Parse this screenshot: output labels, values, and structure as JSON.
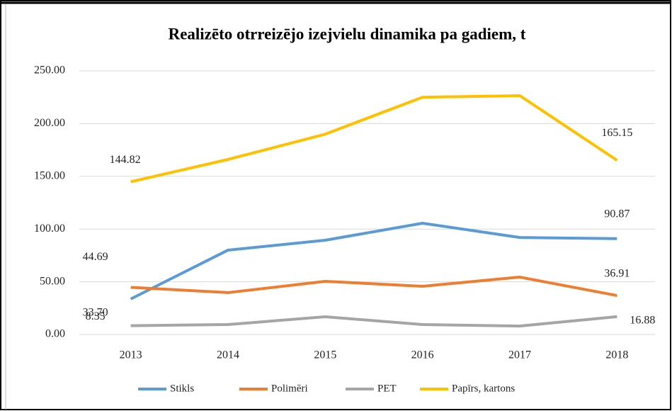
{
  "chart_data": {
    "type": "line",
    "title": "Realizēto otrreizējo izejvielu dinamika pa gadiem, t",
    "categories": [
      "2013",
      "2014",
      "2015",
      "2016",
      "2017",
      "2018"
    ],
    "ylim": [
      0,
      250
    ],
    "yticks": [
      {
        "value": 0,
        "label": "0.00"
      },
      {
        "value": 50,
        "label": "50.00"
      },
      {
        "value": 100,
        "label": "100.00"
      },
      {
        "value": 150,
        "label": "150.00"
      },
      {
        "value": 200,
        "label": "200.00"
      },
      {
        "value": 250,
        "label": "250.00"
      }
    ],
    "grid": true,
    "legend": "bottom",
    "series": [
      {
        "name": "Stikls",
        "color": "#5b9bd5",
        "values": [
          33.7,
          80,
          89.4,
          105.5,
          92,
          90.87
        ],
        "value_labels": [
          "33.70",
          null,
          null,
          null,
          null,
          "90.87"
        ]
      },
      {
        "name": "Polimēri",
        "color": "#ed7d31",
        "values": [
          44.69,
          39.7,
          50.4,
          45.7,
          54.4,
          36.91
        ],
        "value_labels": [
          "44.69",
          null,
          null,
          null,
          null,
          "36.91"
        ]
      },
      {
        "name": "PET",
        "color": "#a5a5a5",
        "values": [
          8.35,
          9.4,
          16.8,
          9.4,
          8,
          16.88
        ],
        "value_labels": [
          "8.35",
          null,
          null,
          null,
          null,
          "16.88"
        ]
      },
      {
        "name": "Papīrs, kartons",
        "color": "#ffc000",
        "values": [
          144.82,
          166,
          190,
          225,
          226.5,
          165.15
        ],
        "value_labels": [
          "144.82",
          null,
          null,
          null,
          null,
          "165.15"
        ]
      }
    ]
  }
}
